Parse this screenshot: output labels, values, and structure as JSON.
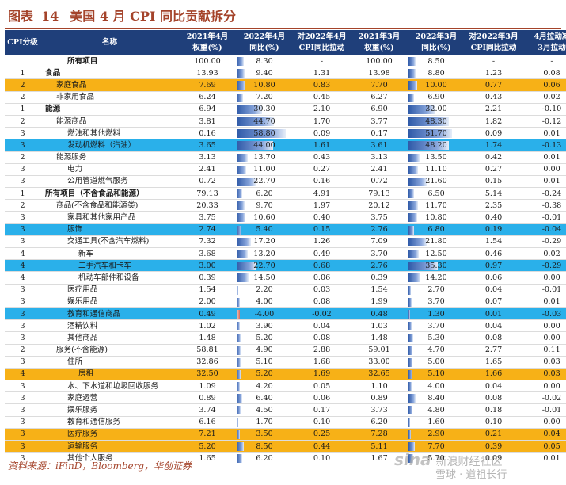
{
  "title": {
    "figure_label": "图表",
    "figure_number": "14",
    "text": "美国 4 月 CPI 同比贡献拆分"
  },
  "table": {
    "headers": [
      "CPI分级",
      "名称",
      "2021年4月\n权重(%)",
      "2022年4月\n同比(%)",
      "对2022年4月\nCPI同比拉动",
      "2021年3月\n权重(%)",
      "2022年3月\n同比(%)",
      "对2022年3月\nCPI同比拉动",
      "4月拉动减\n3月拉动"
    ],
    "rows": [
      {
        "level": "",
        "name": "所有项目",
        "w21_4": "100.00",
        "yoy22_4": "8.30",
        "c22_4": "-",
        "w21_3": "100.00",
        "yoy22_3": "8.50",
        "c22_3": "-",
        "diff": "-",
        "hl": "",
        "bold": true,
        "indent": 2
      },
      {
        "level": "1",
        "name": "食品",
        "w21_4": "13.93",
        "yoy22_4": "9.40",
        "c22_4": "1.31",
        "w21_3": "13.98",
        "yoy22_3": "8.80",
        "c22_3": "1.23",
        "diff": "0.08",
        "hl": "",
        "bold": true,
        "indent": 0
      },
      {
        "level": "2",
        "name": "家庭食品",
        "w21_4": "7.69",
        "yoy22_4": "10.80",
        "c22_4": "0.83",
        "w21_3": "7.70",
        "yoy22_3": "10.00",
        "c22_3": "0.77",
        "diff": "0.06",
        "hl": "orange",
        "bold": false,
        "indent": 1
      },
      {
        "level": "2",
        "name": "非家用食品",
        "w21_4": "6.24",
        "yoy22_4": "7.20",
        "c22_4": "0.45",
        "w21_3": "6.27",
        "yoy22_3": "6.90",
        "c22_3": "0.43",
        "diff": "0.02",
        "hl": "",
        "bold": false,
        "indent": 1
      },
      {
        "level": "1",
        "name": "能源",
        "w21_4": "6.94",
        "yoy22_4": "30.30",
        "c22_4": "2.10",
        "w21_3": "6.90",
        "yoy22_3": "32.00",
        "c22_3": "2.21",
        "diff": "-0.10",
        "hl": "",
        "bold": true,
        "indent": 0
      },
      {
        "level": "2",
        "name": "能源商品",
        "w21_4": "3.81",
        "yoy22_4": "44.70",
        "c22_4": "1.70",
        "w21_3": "3.77",
        "yoy22_3": "48.30",
        "c22_3": "1.82",
        "diff": "-0.12",
        "hl": "",
        "bold": false,
        "indent": 1
      },
      {
        "level": "3",
        "name": "燃油和其他燃料",
        "w21_4": "0.16",
        "yoy22_4": "58.80",
        "c22_4": "0.09",
        "w21_3": "0.17",
        "yoy22_3": "51.70",
        "c22_3": "0.09",
        "diff": "0.01",
        "hl": "",
        "bold": false,
        "indent": 2
      },
      {
        "level": "3",
        "name": "发动机燃料（汽油）",
        "w21_4": "3.65",
        "yoy22_4": "44.00",
        "c22_4": "1.61",
        "w21_3": "3.61",
        "yoy22_3": "48.20",
        "c22_3": "1.74",
        "diff": "-0.13",
        "hl": "blue",
        "bold": false,
        "indent": 2
      },
      {
        "level": "2",
        "name": "能源服务",
        "w21_4": "3.13",
        "yoy22_4": "13.70",
        "c22_4": "0.43",
        "w21_3": "3.13",
        "yoy22_3": "13.50",
        "c22_3": "0.42",
        "diff": "0.01",
        "hl": "",
        "bold": false,
        "indent": 1
      },
      {
        "level": "3",
        "name": "电力",
        "w21_4": "2.41",
        "yoy22_4": "11.00",
        "c22_4": "0.27",
        "w21_3": "2.41",
        "yoy22_3": "11.10",
        "c22_3": "0.27",
        "diff": "0.00",
        "hl": "",
        "bold": false,
        "indent": 2
      },
      {
        "level": "3",
        "name": "公用管道燃气服务",
        "w21_4": "0.72",
        "yoy22_4": "22.70",
        "c22_4": "0.16",
        "w21_3": "0.72",
        "yoy22_3": "21.60",
        "c22_3": "0.15",
        "diff": "0.01",
        "hl": "",
        "bold": false,
        "indent": 2
      },
      {
        "level": "1",
        "name": "所有项目（不含食品和能源）",
        "w21_4": "79.13",
        "yoy22_4": "6.20",
        "c22_4": "4.91",
        "w21_3": "79.13",
        "yoy22_3": "6.50",
        "c22_3": "5.14",
        "diff": "-0.24",
        "hl": "",
        "bold": true,
        "indent": 0
      },
      {
        "level": "2",
        "name": "商品(不含食品和能源类)",
        "w21_4": "20.33",
        "yoy22_4": "9.70",
        "c22_4": "1.97",
        "w21_3": "20.12",
        "yoy22_3": "11.70",
        "c22_3": "2.35",
        "diff": "-0.38",
        "hl": "",
        "bold": false,
        "indent": 1
      },
      {
        "level": "3",
        "name": "家具和其他家用产品",
        "w21_4": "3.75",
        "yoy22_4": "10.60",
        "c22_4": "0.40",
        "w21_3": "3.75",
        "yoy22_3": "10.80",
        "c22_3": "0.40",
        "diff": "-0.01",
        "hl": "",
        "bold": false,
        "indent": 2
      },
      {
        "level": "3",
        "name": "服饰",
        "w21_4": "2.74",
        "yoy22_4": "5.40",
        "c22_4": "0.15",
        "w21_3": "2.76",
        "yoy22_3": "6.80",
        "c22_3": "0.19",
        "diff": "-0.04",
        "hl": "blue",
        "bold": false,
        "indent": 2
      },
      {
        "level": "3",
        "name": "交通工具(不含汽车燃料)",
        "w21_4": "7.32",
        "yoy22_4": "17.20",
        "c22_4": "1.26",
        "w21_3": "7.09",
        "yoy22_3": "21.80",
        "c22_3": "1.54",
        "diff": "-0.29",
        "hl": "",
        "bold": false,
        "indent": 2
      },
      {
        "level": "4",
        "name": "新车",
        "w21_4": "3.68",
        "yoy22_4": "13.20",
        "c22_4": "0.49",
        "w21_3": "3.70",
        "yoy22_3": "12.50",
        "c22_3": "0.46",
        "diff": "0.02",
        "hl": "",
        "bold": false,
        "indent": 3
      },
      {
        "level": "4",
        "name": "二手汽车和卡车",
        "w21_4": "3.00",
        "yoy22_4": "22.70",
        "c22_4": "0.68",
        "w21_3": "2.76",
        "yoy22_3": "35.30",
        "c22_3": "0.97",
        "diff": "-0.29",
        "hl": "blue",
        "bold": false,
        "indent": 3
      },
      {
        "level": "4",
        "name": "机动车部件和设备",
        "w21_4": "0.39",
        "yoy22_4": "14.50",
        "c22_4": "0.06",
        "w21_3": "0.39",
        "yoy22_3": "14.20",
        "c22_3": "0.06",
        "diff": "0.00",
        "hl": "",
        "bold": false,
        "indent": 3
      },
      {
        "level": "3",
        "name": "医疗用品",
        "w21_4": "1.54",
        "yoy22_4": "2.20",
        "c22_4": "0.03",
        "w21_3": "1.54",
        "yoy22_3": "2.70",
        "c22_3": "0.04",
        "diff": "-0.01",
        "hl": "",
        "bold": false,
        "indent": 2
      },
      {
        "level": "3",
        "name": "娱乐用品",
        "w21_4": "2.00",
        "yoy22_4": "4.00",
        "c22_4": "0.08",
        "w21_3": "1.99",
        "yoy22_3": "3.70",
        "c22_3": "0.07",
        "diff": "0.01",
        "hl": "",
        "bold": false,
        "indent": 2
      },
      {
        "level": "3",
        "name": "教育和通信商品",
        "w21_4": "0.49",
        "yoy22_4": "-4.00",
        "c22_4": "-0.02",
        "w21_3": "0.48",
        "yoy22_3": "1.30",
        "c22_3": "0.01",
        "diff": "-0.03",
        "hl": "blue",
        "bold": false,
        "indent": 2
      },
      {
        "level": "3",
        "name": "酒精饮料",
        "w21_4": "1.02",
        "yoy22_4": "3.90",
        "c22_4": "0.04",
        "w21_3": "1.03",
        "yoy22_3": "3.70",
        "c22_3": "0.04",
        "diff": "0.00",
        "hl": "",
        "bold": false,
        "indent": 2
      },
      {
        "level": "3",
        "name": "其他商品",
        "w21_4": "1.48",
        "yoy22_4": "5.20",
        "c22_4": "0.08",
        "w21_3": "1.48",
        "yoy22_3": "5.30",
        "c22_3": "0.08",
        "diff": "0.00",
        "hl": "",
        "bold": false,
        "indent": 2
      },
      {
        "level": "2",
        "name": "服务(不含能源)",
        "w21_4": "58.81",
        "yoy22_4": "4.90",
        "c22_4": "2.88",
        "w21_3": "59.01",
        "yoy22_3": "4.70",
        "c22_3": "2.77",
        "diff": "0.11",
        "hl": "",
        "bold": false,
        "indent": 1
      },
      {
        "level": "3",
        "name": "住所",
        "w21_4": "32.86",
        "yoy22_4": "5.10",
        "c22_4": "1.68",
        "w21_3": "33.00",
        "yoy22_3": "5.00",
        "c22_3": "1.65",
        "diff": "0.03",
        "hl": "",
        "bold": false,
        "indent": 2
      },
      {
        "level": "4",
        "name": "房租",
        "w21_4": "32.50",
        "yoy22_4": "5.20",
        "c22_4": "1.69",
        "w21_3": "32.65",
        "yoy22_3": "5.10",
        "c22_3": "1.66",
        "diff": "0.03",
        "hl": "orange",
        "bold": false,
        "indent": 3
      },
      {
        "level": "3",
        "name": "水、下水道和垃圾回收服务",
        "w21_4": "1.09",
        "yoy22_4": "4.20",
        "c22_4": "0.05",
        "w21_3": "1.10",
        "yoy22_3": "4.00",
        "c22_3": "0.04",
        "diff": "0.00",
        "hl": "",
        "bold": false,
        "indent": 2
      },
      {
        "level": "3",
        "name": "家庭运营",
        "w21_4": "0.89",
        "yoy22_4": "6.40",
        "c22_4": "0.06",
        "w21_3": "0.89",
        "yoy22_3": "8.40",
        "c22_3": "0.08",
        "diff": "-0.02",
        "hl": "",
        "bold": false,
        "indent": 2
      },
      {
        "level": "3",
        "name": "娱乐服务",
        "w21_4": "3.74",
        "yoy22_4": "4.50",
        "c22_4": "0.17",
        "w21_3": "3.73",
        "yoy22_3": "4.80",
        "c22_3": "0.18",
        "diff": "-0.01",
        "hl": "",
        "bold": false,
        "indent": 2
      },
      {
        "level": "3",
        "name": "教育和通信服务",
        "w21_4": "6.16",
        "yoy22_4": "1.70",
        "c22_4": "0.10",
        "w21_3": "6.20",
        "yoy22_3": "1.60",
        "c22_3": "0.10",
        "diff": "0.00",
        "hl": "",
        "bold": false,
        "indent": 2
      },
      {
        "level": "3",
        "name": "医疗服务",
        "w21_4": "7.21",
        "yoy22_4": "3.50",
        "c22_4": "0.25",
        "w21_3": "7.28",
        "yoy22_3": "2.90",
        "c22_3": "0.21",
        "diff": "0.04",
        "hl": "orange",
        "bold": false,
        "indent": 2
      },
      {
        "level": "3",
        "name": "运输服务",
        "w21_4": "5.20",
        "yoy22_4": "8.50",
        "c22_4": "0.44",
        "w21_3": "5.11",
        "yoy22_3": "7.70",
        "c22_3": "0.39",
        "diff": "0.05",
        "hl": "orange",
        "bold": false,
        "indent": 2
      },
      {
        "level": "3",
        "name": "其他个人服务",
        "w21_4": "1.65",
        "yoy22_4": "6.20",
        "c22_4": "0.10",
        "w21_3": "1.67",
        "yoy22_3": "5.70",
        "c22_3": "0.09",
        "diff": "0.01",
        "hl": "",
        "bold": false,
        "indent": 2
      }
    ]
  },
  "bar_scale_max": 58.8,
  "source": "资料来源：iFinD，Bloomberg，华创证券",
  "watermark": {
    "logo": "sina",
    "line1": "新浪财经社区",
    "line2": "雪球 · 道祖长行"
  },
  "colors": {
    "header_bg": "#1f3f7a",
    "highlight_orange": "#f7b117",
    "highlight_blue": "#2ab0ea",
    "title": "#a4432a",
    "bar": "#2f5aa8"
  }
}
